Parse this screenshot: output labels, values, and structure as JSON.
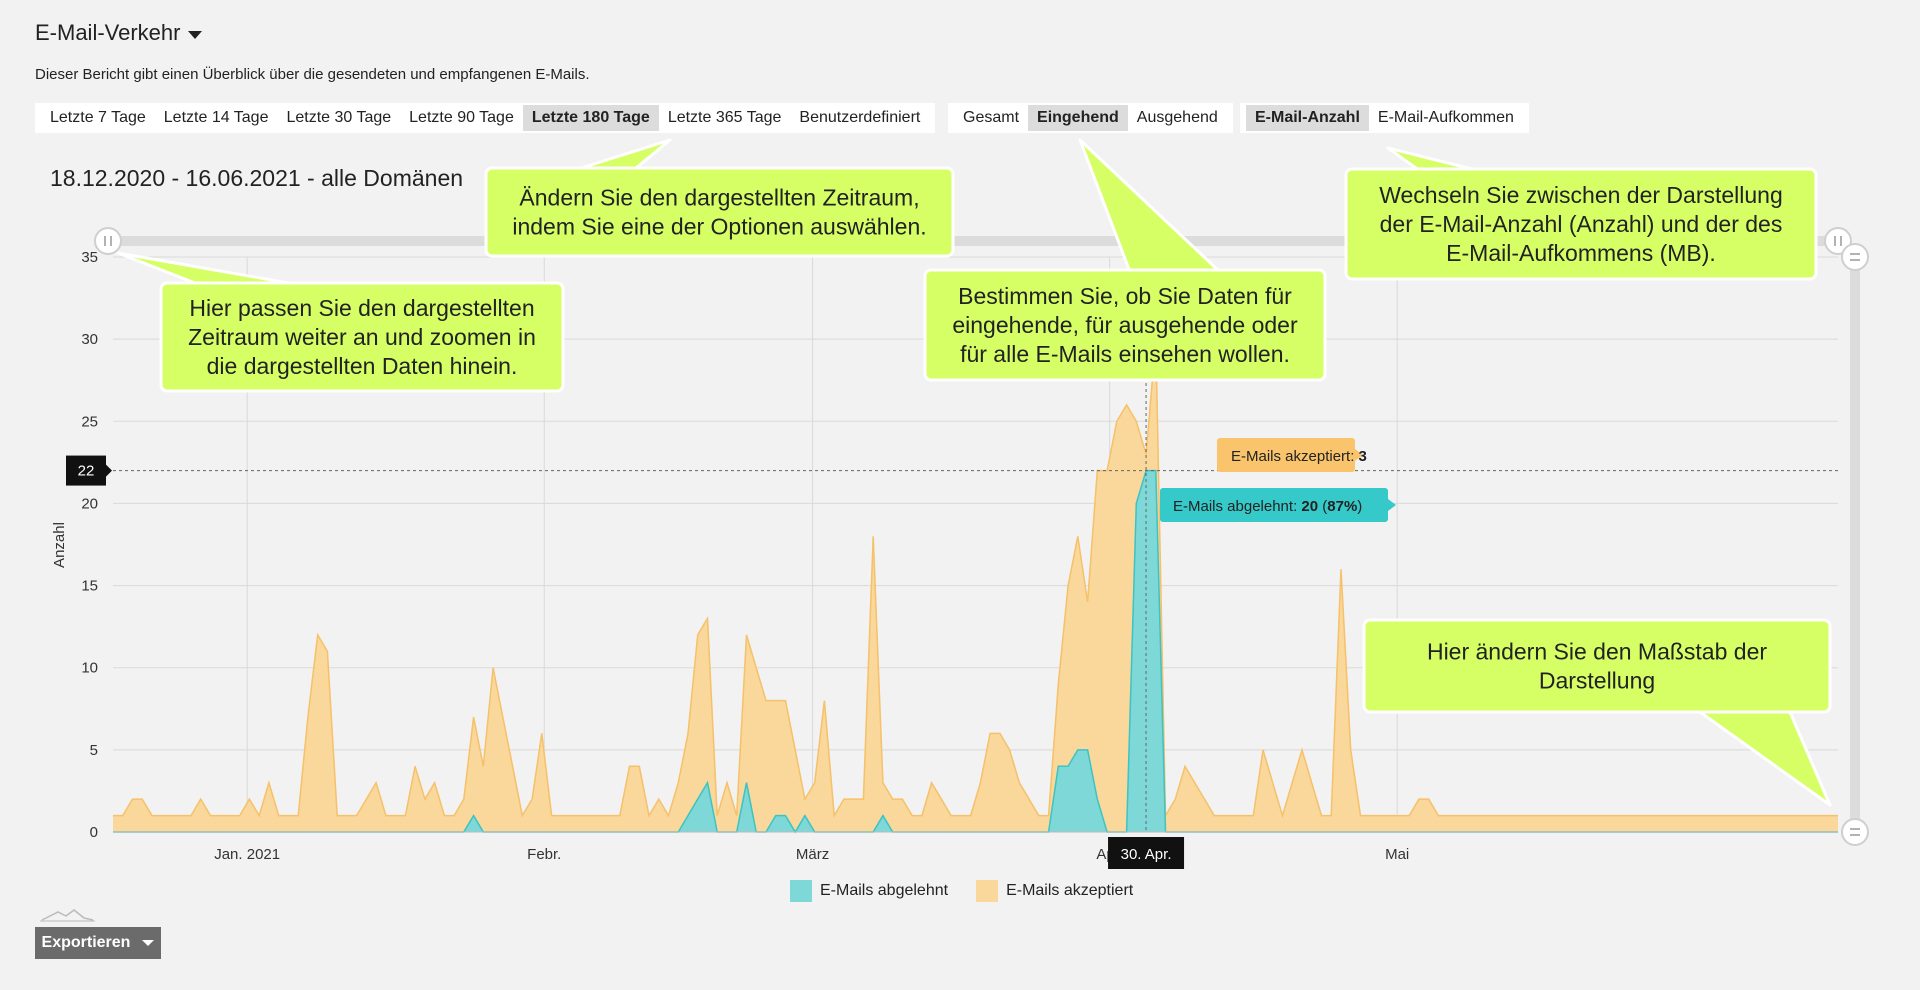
{
  "report": {
    "title": "E-Mail-Verkehr",
    "description": "Dieser Bericht gibt einen Überblick über die gesendeten und empfangenen E-Mails.",
    "date_range": "18.12.2020 - 16.06.2021 - alle Domänen",
    "export_label": "Exportieren"
  },
  "period_buttons": [
    {
      "label": "Letzte 7 Tage",
      "active": false
    },
    {
      "label": "Letzte 14 Tage",
      "active": false
    },
    {
      "label": "Letzte 30 Tage",
      "active": false
    },
    {
      "label": "Letzte 90 Tage",
      "active": false
    },
    {
      "label": "Letzte 180 Tage",
      "active": true
    },
    {
      "label": "Letzte 365 Tage",
      "active": false
    },
    {
      "label": "Benutzerdefiniert",
      "active": false
    }
  ],
  "direction_buttons": [
    {
      "label": "Gesamt",
      "active": false
    },
    {
      "label": "Eingehend",
      "active": true
    },
    {
      "label": "Ausgehend",
      "active": false
    }
  ],
  "metric_buttons": [
    {
      "label": "E-Mail-Anzahl",
      "active": true
    },
    {
      "label": "E-Mail-Aufkommen",
      "active": false
    }
  ],
  "callouts": {
    "period": [
      "Ändern Sie den dargestellten Zeitraum,",
      "indem Sie eine der Optionen auswählen."
    ],
    "zoom": [
      "Hier passen Sie den dargestellten",
      "Zeitraum weiter an und zoomen in",
      "die dargestellten Daten hinein."
    ],
    "direction": [
      "Bestimmen Sie, ob Sie Daten für",
      "eingehende, für ausgehende oder",
      "für alle E-Mails einsehen wollen."
    ],
    "metric": [
      "Wechseln Sie zwischen der Darstellung",
      "der E-Mail-Anzahl (Anzahl) und der des",
      "E-Mail-Aufkommens (MB)."
    ],
    "scale": [
      "Hier ändern Sie den Maßstab der",
      "Darstellung"
    ]
  },
  "tooltips": {
    "accepted_label": "E-Mails akzeptiert: ",
    "accepted_value": "3",
    "rejected_label": "E-Mails abgelehnt: ",
    "rejected_value": "20",
    "rejected_pct": "87%",
    "y_crosshair": "22",
    "x_crosshair": "30. Apr."
  },
  "colors": {
    "accepted": "#fad79a",
    "accepted_line": "#f5c16a",
    "rejected": "#7ed8d8",
    "rejected_line": "#3cc3c3",
    "callout": "#d6ff66",
    "tooltip_accepted": "#f9c46b",
    "tooltip_rejected": "#36c9c9"
  },
  "chart_data": {
    "type": "area",
    "ylabel": "Anzahl",
    "ylim": [
      0,
      35
    ],
    "yticks": [
      0,
      5,
      10,
      15,
      20,
      25,
      30,
      35
    ],
    "x_start": "2020-12-18",
    "x_end": "2021-06-16",
    "x_ticks": [
      {
        "label": "Jan. 2021",
        "date": "2021-01-01"
      },
      {
        "label": "Febr.",
        "date": "2021-02-01"
      },
      {
        "label": "März",
        "date": "2021-03-01"
      },
      {
        "label": "Apr.",
        "date": "2021-04-01"
      },
      {
        "label": "Mai",
        "date": "2021-05-01"
      }
    ],
    "series": [
      {
        "name": "E-Mails akzeptiert",
        "stack": "top",
        "values": [
          1,
          1,
          2,
          2,
          1,
          1,
          1,
          1,
          1,
          2,
          1,
          1,
          1,
          1,
          2,
          1,
          3,
          1,
          1,
          1,
          7,
          12,
          11,
          1,
          1,
          1,
          2,
          3,
          1,
          1,
          1,
          4,
          2,
          3,
          1,
          1,
          2,
          6,
          4,
          10,
          7,
          4,
          1,
          2,
          6,
          1,
          1,
          1,
          1,
          1,
          1,
          1,
          1,
          4,
          4,
          1,
          2,
          1,
          3,
          5,
          10,
          10,
          1,
          3,
          1,
          9,
          10,
          8,
          7,
          7,
          5,
          1,
          3,
          8,
          1,
          2,
          2,
          2,
          18,
          2,
          2,
          2,
          1,
          1,
          3,
          2,
          1,
          1,
          1,
          3,
          6,
          6,
          5,
          3,
          2,
          1,
          1,
          5,
          11,
          13,
          9,
          20,
          22,
          25,
          26,
          5,
          1,
          8,
          1,
          2,
          4,
          3,
          2,
          1,
          1,
          1,
          1,
          1,
          5,
          3,
          1,
          3,
          5,
          3,
          1,
          1,
          16,
          5,
          1,
          1,
          1,
          1,
          1,
          1,
          2,
          2,
          1,
          1,
          1,
          1,
          1,
          1,
          1,
          1,
          1,
          1,
          1,
          1,
          1,
          1,
          1,
          1,
          1,
          1,
          1,
          1,
          1,
          1,
          1,
          1,
          1,
          1,
          1,
          1,
          1,
          1,
          1,
          1,
          1,
          1,
          1,
          1,
          1,
          1,
          1,
          1,
          1,
          1
        ]
      },
      {
        "name": "E-Mails abgelehnt",
        "stack": "bottom",
        "values": [
          0,
          0,
          0,
          0,
          0,
          0,
          0,
          0,
          0,
          0,
          0,
          0,
          0,
          0,
          0,
          0,
          0,
          0,
          0,
          0,
          0,
          0,
          0,
          0,
          0,
          0,
          0,
          0,
          0,
          0,
          0,
          0,
          0,
          0,
          0,
          0,
          0,
          1,
          0,
          0,
          0,
          0,
          0,
          0,
          0,
          0,
          0,
          0,
          0,
          0,
          0,
          0,
          0,
          0,
          0,
          0,
          0,
          0,
          0,
          1,
          2,
          3,
          0,
          0,
          0,
          3,
          0,
          0,
          1,
          1,
          0,
          1,
          0,
          0,
          0,
          0,
          0,
          0,
          0,
          1,
          0,
          0,
          0,
          0,
          0,
          0,
          0,
          0,
          0,
          0,
          0,
          0,
          0,
          0,
          0,
          0,
          0,
          4,
          4,
          5,
          5,
          2,
          0,
          0,
          0,
          20,
          22,
          22,
          0,
          0,
          0,
          0,
          0,
          0,
          0,
          0,
          0,
          0,
          0,
          0,
          0,
          0,
          0,
          0,
          0,
          0,
          0,
          0,
          0,
          0,
          0,
          0,
          0,
          0,
          0,
          0,
          0,
          0,
          0,
          0,
          0,
          0,
          0,
          0,
          0,
          0,
          0,
          0,
          0,
          0,
          0,
          0,
          0,
          0,
          0,
          0,
          0,
          0,
          0,
          0,
          0,
          0,
          0,
          0,
          0,
          0,
          0,
          0,
          0,
          0,
          0,
          0,
          0,
          0,
          0,
          0,
          0,
          0,
          0,
          0
        ]
      }
    ]
  }
}
